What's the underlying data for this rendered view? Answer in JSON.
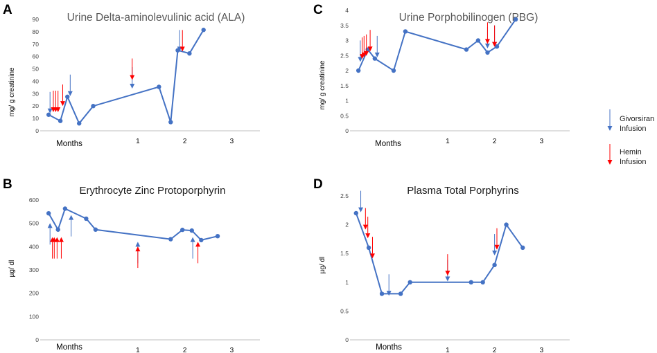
{
  "colors": {
    "series": "#4472C4",
    "givosiran": "#4472C4",
    "hemin": "#FF0000",
    "axis": "#bfbfbf"
  },
  "legend": {
    "givosiran_line1": "Givorsiran",
    "givosiran_line2": "Infusion",
    "hemin_line1": "Hemin",
    "hemin_line2": "Infusion"
  },
  "chart_data": [
    {
      "panel": "A",
      "type": "line",
      "title": "Urine Delta-aminolevulinic acid (ALA)",
      "ylabel": "mg/ g creatinine",
      "xlabel": "Months",
      "xtick_labels": [
        "1",
        "2",
        "3"
      ],
      "xtick_positions": [
        1,
        2,
        3
      ],
      "ylim": [
        0,
        90
      ],
      "yticks": [
        0,
        10,
        20,
        30,
        40,
        50,
        60,
        70,
        80,
        90
      ],
      "xlim": [
        -1.05,
        3.6
      ],
      "x": [
        -0.9,
        -0.65,
        -0.5,
        -0.25,
        0.05,
        1.45,
        1.7,
        1.85,
        2.1,
        2.4
      ],
      "values": [
        13,
        8,
        27.5,
        6,
        20,
        35.5,
        7,
        65,
        62.5,
        81.5
      ],
      "markers": {
        "givosiran": [
          [
            -0.87,
            18
          ],
          [
            -0.44,
            32
          ],
          [
            0.88,
            38
          ],
          [
            1.89,
            68
          ]
        ],
        "hemin": [
          [
            -0.8,
            19
          ],
          [
            -0.75,
            19
          ],
          [
            -0.7,
            19
          ],
          [
            -0.6,
            24
          ],
          [
            0.88,
            45
          ],
          [
            1.95,
            68
          ]
        ]
      }
    },
    {
      "panel": "B",
      "type": "line",
      "title": "Erythrocyte Zinc Protoporphyrin",
      "ylabel": "µg/ dl",
      "xlabel": "Months",
      "xtick_labels": [
        "1",
        "2",
        "3"
      ],
      "xtick_positions": [
        1,
        2,
        3
      ],
      "ylim": [
        0,
        600
      ],
      "yticks": [
        0,
        100,
        200,
        300,
        400,
        500,
        600
      ],
      "xlim": [
        -1.05,
        3.6
      ],
      "x": [
        -0.9,
        -0.7,
        -0.55,
        -0.1,
        0.1,
        1.7,
        1.95,
        2.15,
        2.35,
        2.7
      ],
      "values": [
        543,
        473,
        563,
        520,
        473,
        432,
        472,
        469,
        428,
        445
      ],
      "markers": {
        "givosiran": [
          [
            -0.87,
            480
          ],
          [
            -0.42,
            515
          ],
          [
            1.0,
            400
          ],
          [
            2.17,
            420
          ]
        ],
        "hemin": [
          [
            -0.82,
            420
          ],
          [
            -0.78,
            420
          ],
          [
            -0.72,
            420
          ],
          [
            -0.63,
            420
          ],
          [
            1.0,
            380
          ],
          [
            2.28,
            400
          ]
        ]
      }
    },
    {
      "panel": "C",
      "type": "line",
      "title": "Urine Porphobilinogen (PBG)",
      "ylabel": "mg/ g creatinine",
      "xlabel": "Months",
      "xtick_labels": [
        "1",
        "2",
        "3"
      ],
      "xtick_positions": [
        1,
        2,
        3
      ],
      "ylim": [
        0,
        4
      ],
      "yticks": [
        0,
        0.5,
        1,
        1.5,
        2,
        2.5,
        3,
        3.5,
        4
      ],
      "xlim": [
        -1.05,
        3.6
      ],
      "x": [
        -0.9,
        -0.7,
        -0.55,
        -0.15,
        0.1,
        1.4,
        1.65,
        1.85,
        2.05,
        2.45
      ],
      "values": [
        2,
        2.7,
        2.4,
        2,
        3.3,
        2.7,
        3,
        2.6,
        2.8,
        3.7
      ],
      "markers": {
        "givosiran": [
          [
            -0.86,
            2.45
          ],
          [
            -0.5,
            2.6
          ],
          [
            1.85,
            2.9
          ],
          [
            2.0,
            2.95
          ]
        ],
        "hemin": [
          [
            -0.82,
            2.55
          ],
          [
            -0.78,
            2.6
          ],
          [
            -0.73,
            2.65
          ],
          [
            -0.65,
            2.8
          ],
          [
            1.85,
            3.05
          ],
          [
            2.0,
            2.95
          ]
        ]
      }
    },
    {
      "panel": "D",
      "type": "line",
      "title": "Plasma Total Porphyrins",
      "ylabel": "µg/ dl",
      "xlabel": "Months",
      "xtick_labels": [
        "1",
        "2",
        "3"
      ],
      "xtick_positions": [
        1,
        2,
        3
      ],
      "ylim": [
        0,
        2.5
      ],
      "yticks": [
        0,
        0.5,
        1,
        1.5,
        2,
        2.5
      ],
      "xlim": [
        -1.05,
        3.6
      ],
      "x": [
        -0.95,
        -0.68,
        -0.4,
        0,
        0.2,
        1.5,
        1.75,
        2.0,
        2.25,
        2.6
      ],
      "values": [
        2.2,
        1.6,
        0.8,
        0.8,
        1.0,
        1.0,
        1.0,
        1.3,
        2.0,
        1.6
      ],
      "markers": {
        "givosiran": [
          [
            -0.85,
            2.3
          ],
          [
            -0.25,
            0.85
          ],
          [
            1.0,
            1.1
          ],
          [
            2.0,
            1.55
          ]
        ],
        "hemin": [
          [
            -0.75,
            2.0
          ],
          [
            -0.7,
            1.85
          ],
          [
            -0.6,
            1.5
          ],
          [
            1.0,
            1.2
          ],
          [
            2.05,
            1.65
          ]
        ]
      }
    }
  ]
}
